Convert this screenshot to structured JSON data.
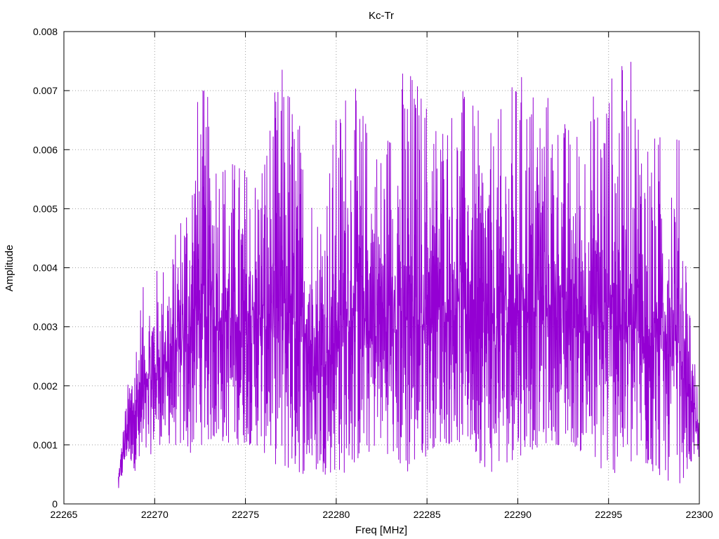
{
  "chart_data": {
    "type": "line",
    "title": "Kc-Tr",
    "xlabel": "Freq [MHz]",
    "ylabel": "Amplitude",
    "xlim": [
      22265,
      22300
    ],
    "ylim": [
      0,
      0.008
    ],
    "x_ticks": [
      "22265",
      "22270",
      "22275",
      "22280",
      "22285",
      "22290",
      "22295",
      "22300"
    ],
    "y_ticks": [
      "0",
      "0.001",
      "0.002",
      "0.003",
      "0.004",
      "0.005",
      "0.006",
      "0.007",
      "0.008"
    ],
    "grid": true,
    "legend": "none",
    "series": [
      {
        "color": "#9400d3",
        "x_start": 22268.0,
        "x_end": 22300.0,
        "envelope": [
          {
            "x": 22268.0,
            "peak": 0.0006,
            "trough": 0.0002
          },
          {
            "x": 22268.5,
            "peak": 0.002,
            "trough": 0.0008
          },
          {
            "x": 22269.2,
            "peak": 0.0036,
            "trough": 0.0004
          },
          {
            "x": 22270.0,
            "peak": 0.004,
            "trough": 0.001
          },
          {
            "x": 22271.0,
            "peak": 0.0044,
            "trough": 0.001
          },
          {
            "x": 22272.0,
            "peak": 0.0062,
            "trough": 0.0008
          },
          {
            "x": 22272.5,
            "peak": 0.0073,
            "trough": 0.001
          },
          {
            "x": 22274.0,
            "peak": 0.006,
            "trough": 0.001
          },
          {
            "x": 22275.5,
            "peak": 0.0058,
            "trough": 0.001
          },
          {
            "x": 22277.2,
            "peak": 0.0077,
            "trough": 0.0005
          },
          {
            "x": 22279.0,
            "peak": 0.0052,
            "trough": 0.0005
          },
          {
            "x": 22280.5,
            "peak": 0.0074,
            "trough": 0.0005
          },
          {
            "x": 22282.5,
            "peak": 0.0062,
            "trough": 0.001
          },
          {
            "x": 22283.8,
            "peak": 0.0077,
            "trough": 0.0004
          },
          {
            "x": 22285.5,
            "peak": 0.0068,
            "trough": 0.001
          },
          {
            "x": 22287.0,
            "peak": 0.0071,
            "trough": 0.001
          },
          {
            "x": 22288.5,
            "peak": 0.0063,
            "trough": 0.0005
          },
          {
            "x": 22290.0,
            "peak": 0.0074,
            "trough": 0.0008
          },
          {
            "x": 22291.5,
            "peak": 0.0072,
            "trough": 0.001
          },
          {
            "x": 22293.0,
            "peak": 0.0064,
            "trough": 0.001
          },
          {
            "x": 22294.6,
            "peak": 0.0073,
            "trough": 0.0005
          },
          {
            "x": 22296.2,
            "peak": 0.0076,
            "trough": 0.0005
          },
          {
            "x": 22297.5,
            "peak": 0.0063,
            "trough": 0.0005
          },
          {
            "x": 22298.8,
            "peak": 0.0066,
            "trough": 0.0003
          },
          {
            "x": 22300.0,
            "peak": 0.0015,
            "trough": 0.0008
          }
        ]
      }
    ]
  }
}
